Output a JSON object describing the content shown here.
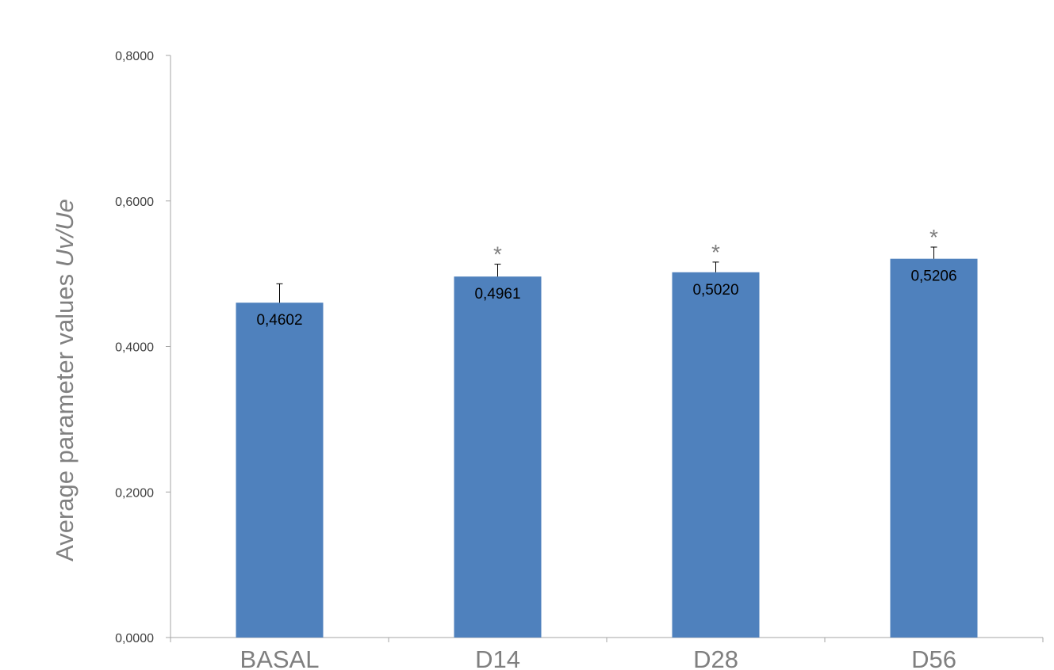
{
  "chart_data": {
    "type": "bar",
    "categories": [
      "BASAL",
      "D14",
      "D28",
      "D56"
    ],
    "values": [
      0.4602,
      0.4961,
      0.502,
      0.5206
    ],
    "value_labels": [
      "0,4602",
      "0,4961",
      "0,5020",
      "0,5206"
    ],
    "error_plus": [
      0.026,
      0.017,
      0.014,
      0.016
    ],
    "significance_markers": [
      "",
      "*",
      "*",
      "*"
    ],
    "ylabel_prefix": "Average parameter values ",
    "ylabel_italic": "Uv/Ue",
    "xlabel": "",
    "ylim": [
      0,
      0.8
    ],
    "yticks": [
      0,
      0.2,
      0.4,
      0.6,
      0.8
    ],
    "ytick_labels": [
      "0,0000",
      "0,2000",
      "0,4000",
      "0,6000",
      "0,8000"
    ],
    "bar_color": "#4f81bd",
    "grid": false,
    "legend": "none"
  }
}
